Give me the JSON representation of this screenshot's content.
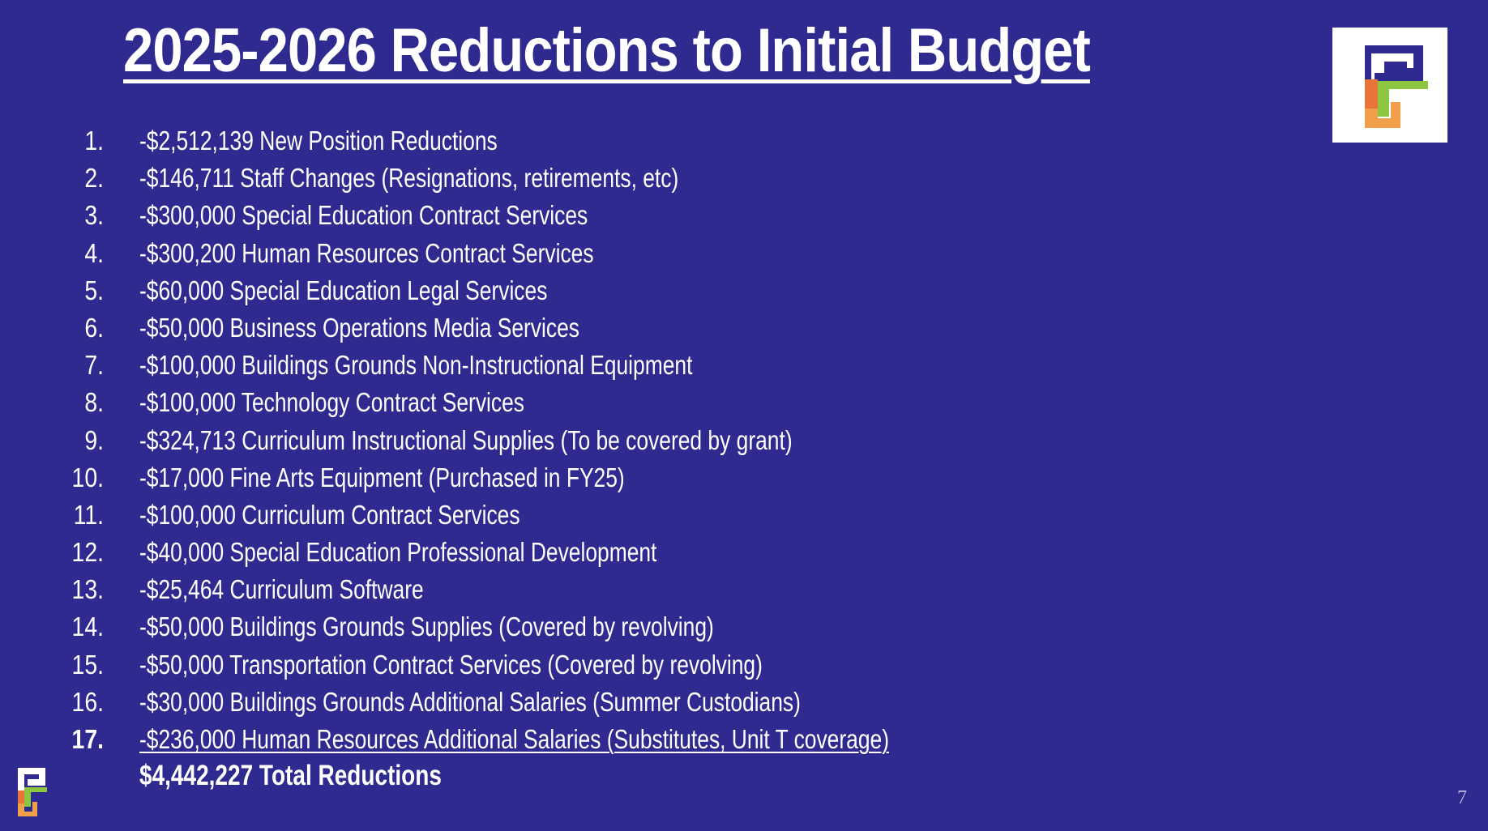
{
  "slide": {
    "title": "2025-2026 Reductions to Initial Budget",
    "logo_icon": "district-logo-icon",
    "items": [
      {
        "number": "1.",
        "text": "-$2,512,139 New Position Reductions"
      },
      {
        "number": "2.",
        "text": "-$146,711 Staff Changes (Resignations, retirements, etc)"
      },
      {
        "number": "3.",
        "text": "-$300,000 Special Education Contract Services"
      },
      {
        "number": "4.",
        "text": "-$300,200 Human Resources Contract Services"
      },
      {
        "number": "5.",
        "text": "-$60,000 Special Education Legal Services"
      },
      {
        "number": "6.",
        "text": "-$50,000 Business Operations Media Services"
      },
      {
        "number": "7.",
        "text": "-$100,000 Buildings Grounds Non-Instructional Equipment"
      },
      {
        "number": "8.",
        "text": "-$100,000 Technology Contract Services"
      },
      {
        "number": "9.",
        "text": "-$324,713 Curriculum Instructional Supplies (To be covered by grant)"
      },
      {
        "number": "10.",
        "text": "-$17,000 Fine Arts Equipment (Purchased in FY25)"
      },
      {
        "number": "11.",
        "text": "-$100,000 Curriculum Contract Services"
      },
      {
        "number": "12.",
        "text": "-$40,000 Special Education Professional Development"
      },
      {
        "number": "13.",
        "text": "-$25,464 Curriculum Software"
      },
      {
        "number": "14.",
        "text": "-$50,000 Buildings Grounds Supplies (Covered by revolving)"
      },
      {
        "number": "15.",
        "text": "-$50,000 Transportation Contract Services (Covered by revolving)"
      },
      {
        "number": "16.",
        "text": "-$30,000 Buildings Grounds Additional Salaries (Summer Custodians)"
      },
      {
        "number": "17.",
        "text": "-$236,000 Human Resources Additional Salaries (Substitutes, Unit T coverage)"
      }
    ],
    "total": "$4,442,227 Total Reductions",
    "page_number": "7"
  },
  "colors": {
    "background": "#2e2a8f",
    "text": "#ffffff",
    "logo_navy": "#2e2a8f",
    "logo_orange": "#e8743b",
    "logo_green": "#8dc63f",
    "logo_amber": "#f0a04b"
  }
}
